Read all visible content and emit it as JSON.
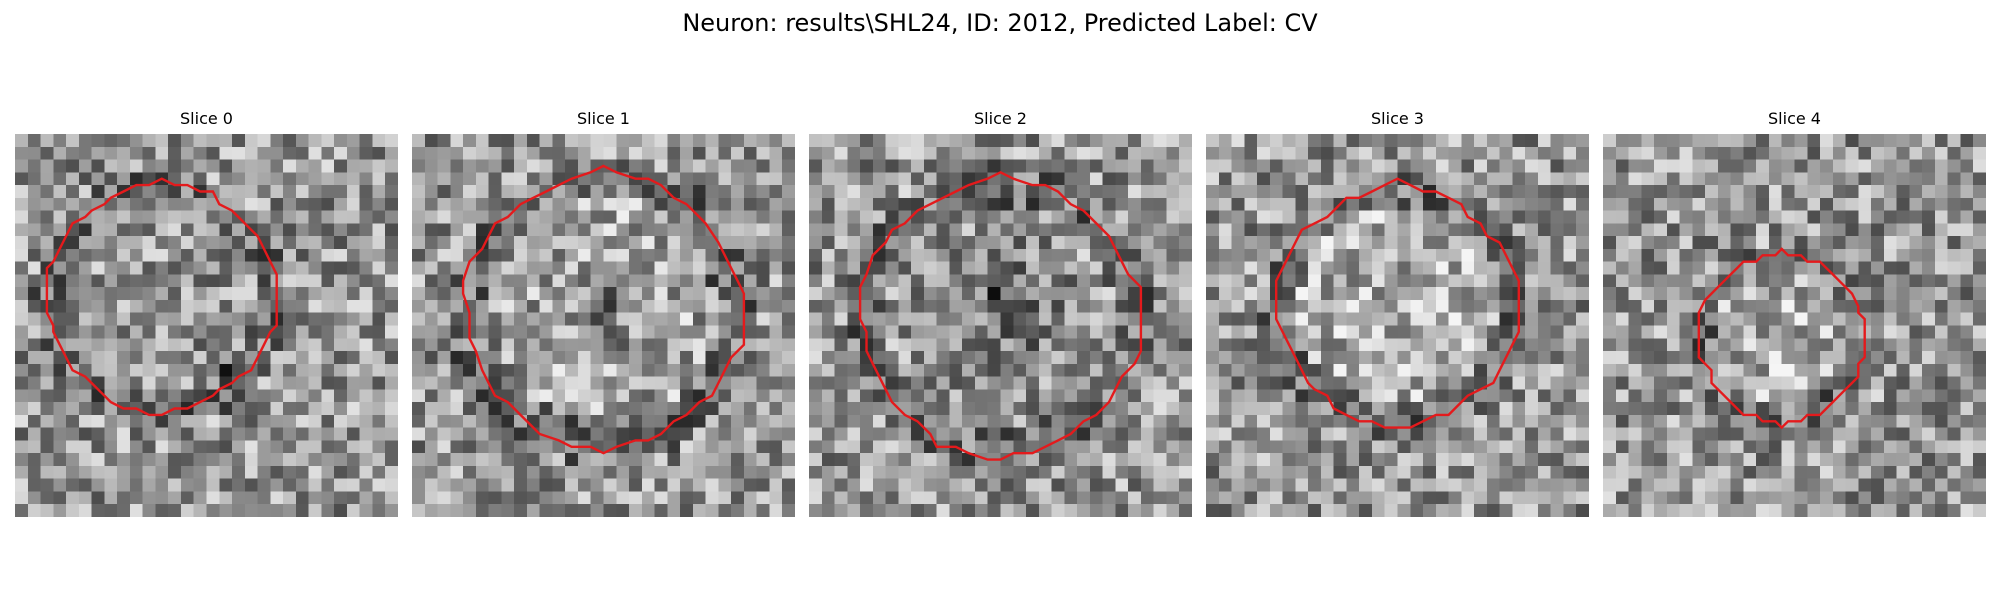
{
  "figure": {
    "title": "Neuron: results\\SHL24, ID: 2012, Predicted Label: CV"
  },
  "panels": [
    {
      "title": "Slice 0",
      "image": "grayscale-microscopy-slice",
      "roi_color": "#e41a1c"
    },
    {
      "title": "Slice 1",
      "image": "grayscale-microscopy-slice",
      "roi_color": "#e41a1c"
    },
    {
      "title": "Slice 2",
      "image": "grayscale-microscopy-slice",
      "roi_color": "#e41a1c"
    },
    {
      "title": "Slice 3",
      "image": "grayscale-microscopy-slice",
      "roi_color": "#e41a1c"
    },
    {
      "title": "Slice 4",
      "image": "grayscale-microscopy-slice",
      "roi_color": "#e41a1c"
    }
  ]
}
